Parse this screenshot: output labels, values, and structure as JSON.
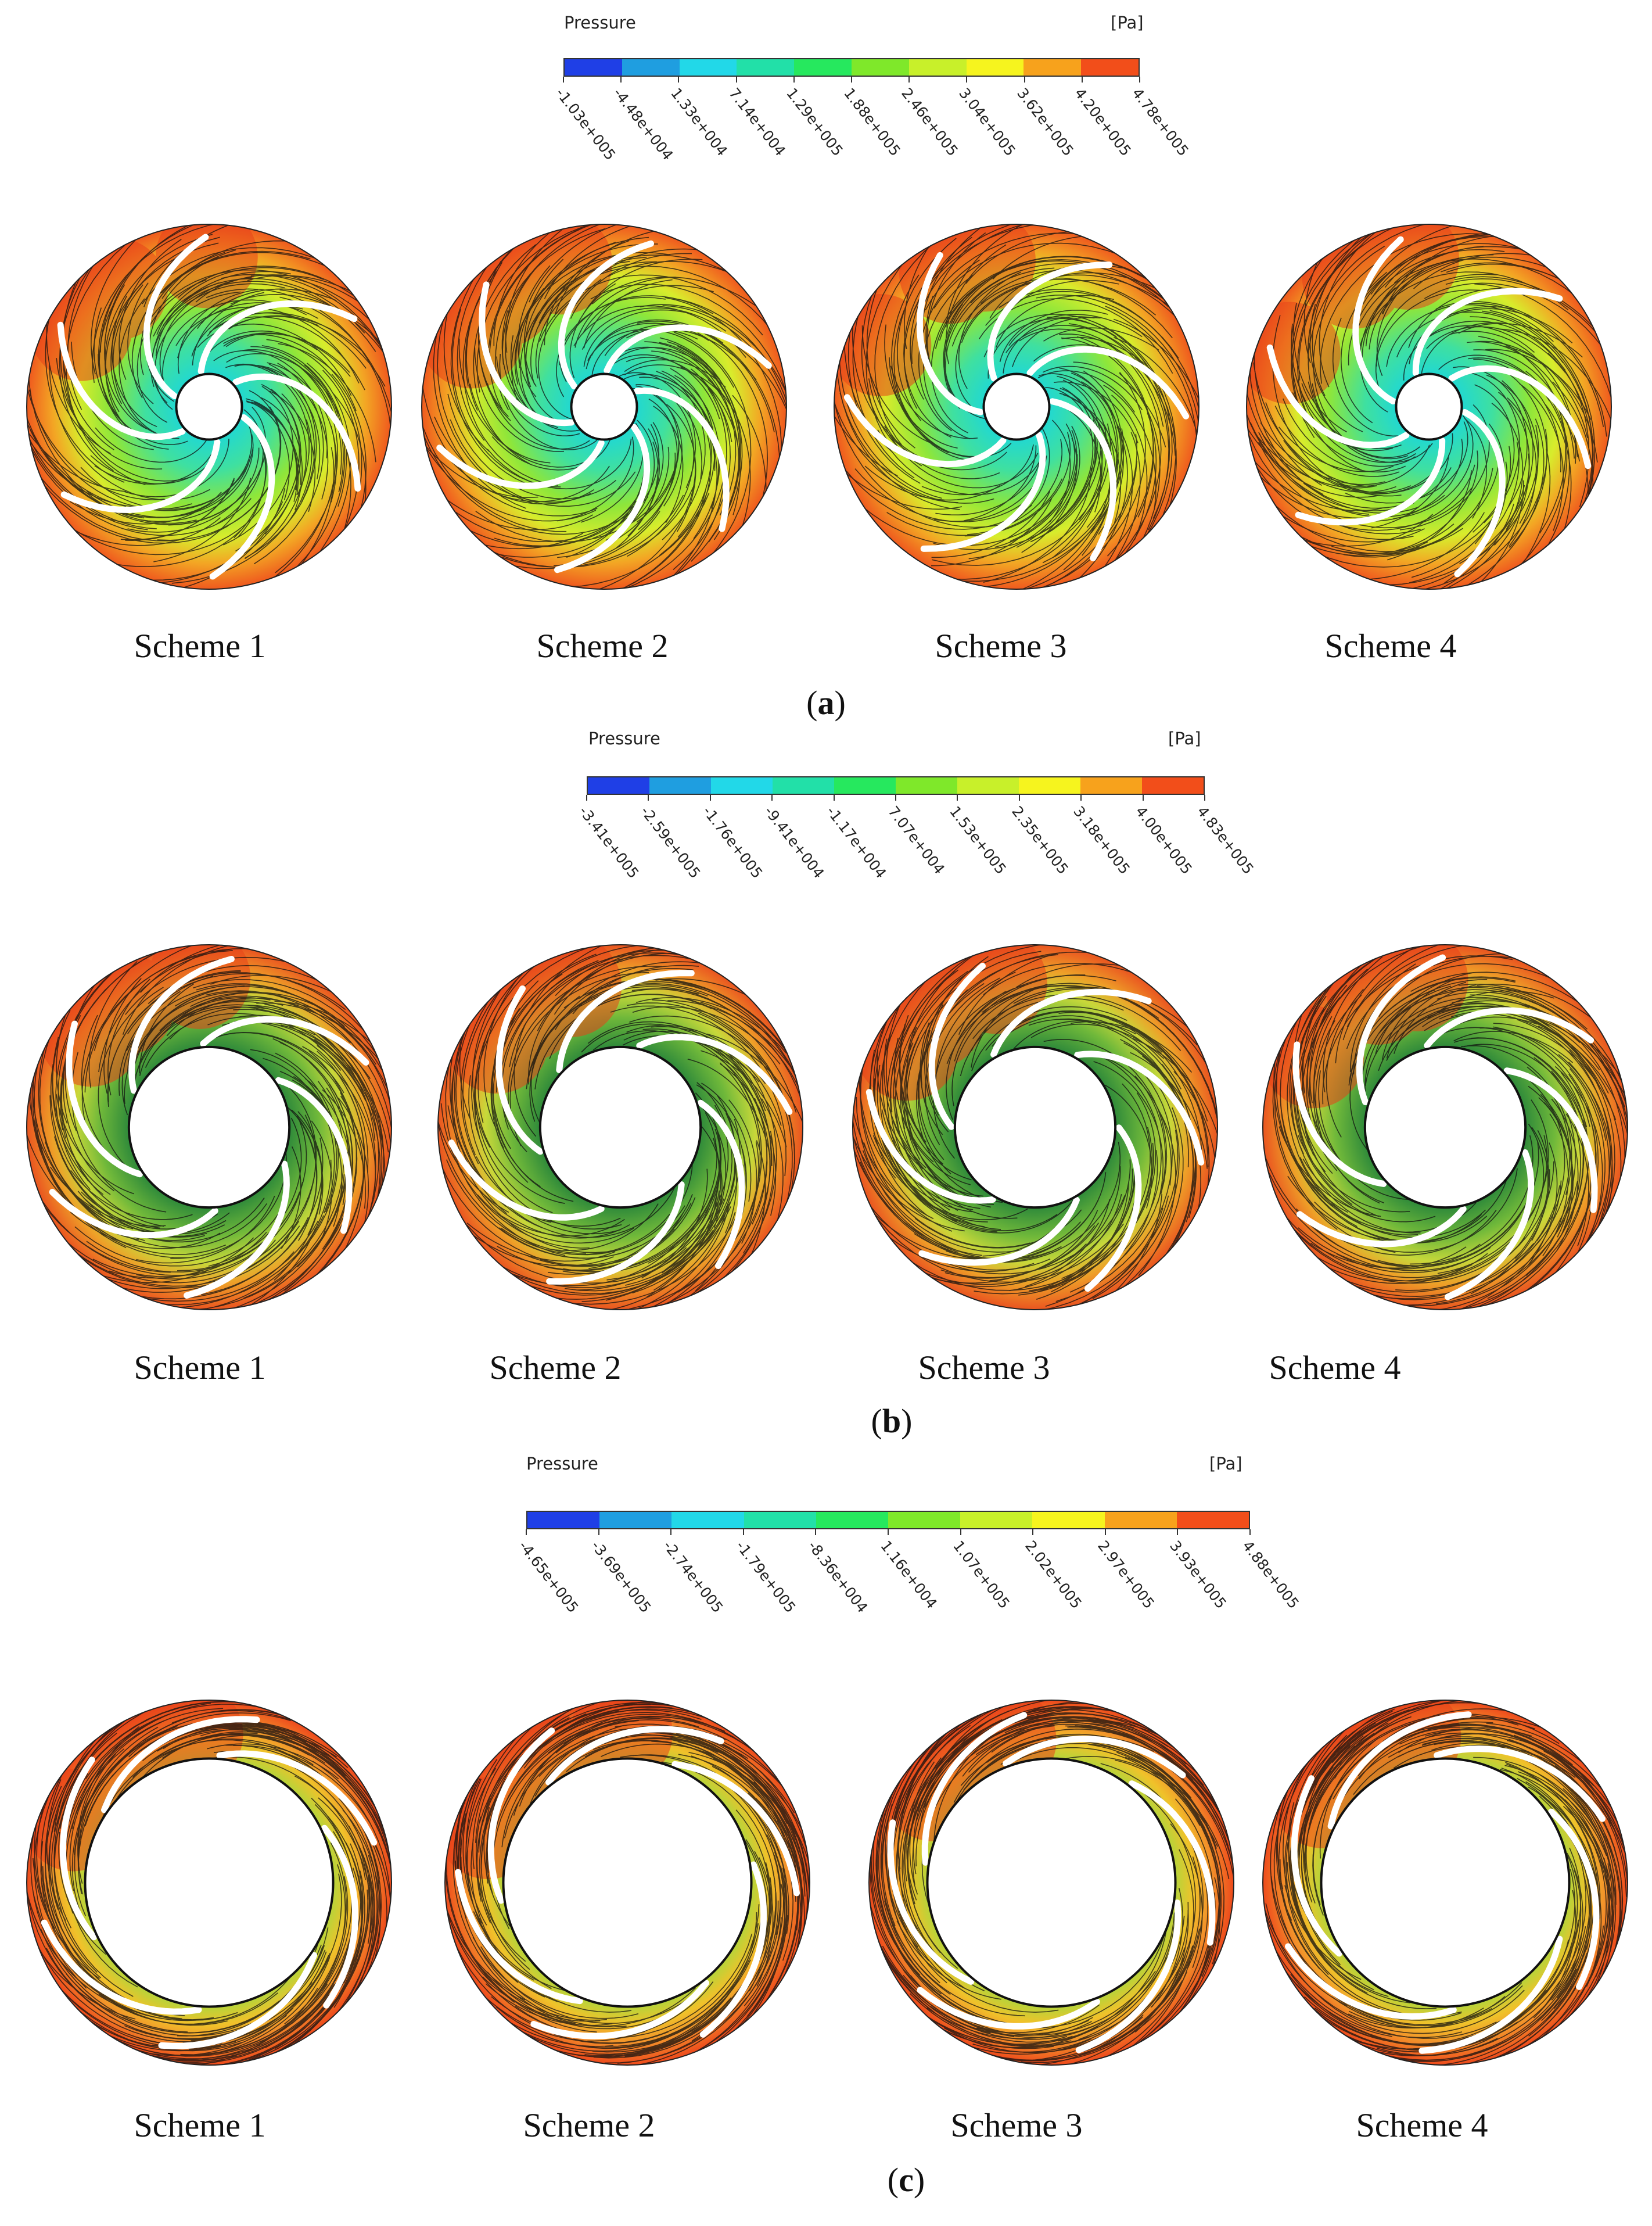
{
  "panels": [
    {
      "id": "a",
      "letter": "a",
      "colorbar": {
        "title": "Pressure",
        "unit": "[Pa]",
        "ticks": [
          "-1.03e+005",
          "-4.48e+004",
          "1.33e+004",
          "7.14e+004",
          "1.29e+005",
          "1.88e+005",
          "2.46e+005",
          "3.04e+005",
          "3.62e+005",
          "4.20e+005",
          "4.78e+005"
        ]
      },
      "schemes": [
        "Scheme 1",
        "Scheme 2",
        "Scheme 3",
        "Scheme 4"
      ],
      "hub_ratio": 0.18
    },
    {
      "id": "b",
      "letter": "b",
      "colorbar": {
        "title": "Pressure",
        "unit": "[Pa]",
        "ticks": [
          "-3.41e+005",
          "-2.59e+005",
          "-1.76e+005",
          "-9.41e+004",
          "-1.17e+004",
          "7.07e+004",
          "1.53e+005",
          "2.35e+005",
          "3.18e+005",
          "4.00e+005",
          "4.83e+005"
        ]
      },
      "schemes": [
        "Scheme 1",
        "Scheme 2",
        "Scheme 3",
        "Scheme 4"
      ],
      "hub_ratio": 0.44
    },
    {
      "id": "c",
      "letter": "c",
      "colorbar": {
        "title": "Pressure",
        "unit": "[Pa]",
        "ticks": [
          "-4.65e+005",
          "-3.69e+005",
          "-2.74e+005",
          "-1.79e+005",
          "-8.36e+004",
          "1.16e+004",
          "1.07e+005",
          "2.02e+005",
          "2.97e+005",
          "3.93e+005",
          "4.88e+005"
        ]
      },
      "schemes": [
        "Scheme 1",
        "Scheme 2",
        "Scheme 3",
        "Scheme 4"
      ],
      "hub_ratio": 0.68
    }
  ],
  "colors": {
    "scale": [
      "#1f3fe6",
      "#1f9ee0",
      "#22d8e8",
      "#22e0a8",
      "#26e85e",
      "#7fe82a",
      "#c8f02a",
      "#f6f41e",
      "#f7a21c",
      "#f24e1a"
    ],
    "blade": "#ffffff",
    "streamline": "#101010"
  }
}
